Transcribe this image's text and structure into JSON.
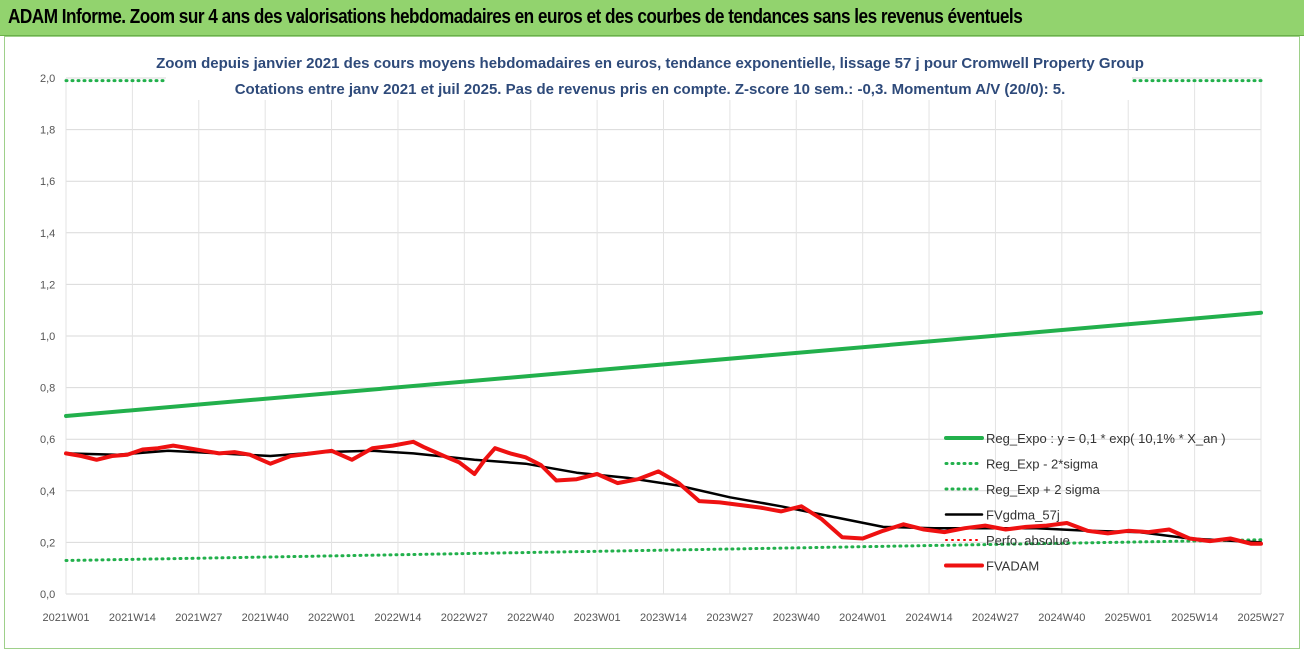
{
  "banner": {
    "title": "ADAM Informe. Zoom sur 4 ans des valorisations hebdomadaires en euros et des courbes de tendances sans les revenus éventuels"
  },
  "colors": {
    "banner_bg": "#92d36e",
    "reg_expo": "#22b04c",
    "reg_band": "#22b04c",
    "fvgdma": "#000000",
    "perfo": "#ff0000",
    "fvadam": "#ee1111",
    "subtitle": "#2e4a7a"
  },
  "chart_data": {
    "type": "line",
    "title_lines": [
      "Zoom depuis janvier 2021 des cours moyens hebdomadaires en euros, tendance exponentielle, lissage 57 j pour Cromwell Property Group",
      "Cotations entre janv 2021 et juil 2025. Pas de revenus pris en compte. Z-score 10 sem.: -0,3. Momentum A/V (20/0): 5."
    ],
    "xlabel": "",
    "ylabel": "",
    "ylim": [
      0,
      2.0
    ],
    "y_ticks": [
      "0,0",
      "0,2",
      "0,4",
      "0,6",
      "0,8",
      "1,0",
      "1,2",
      "1,4",
      "1,6",
      "1,8",
      "2,0"
    ],
    "y_tick_values": [
      0,
      0.2,
      0.4,
      0.6,
      0.8,
      1.0,
      1.2,
      1.4,
      1.6,
      1.8,
      2.0
    ],
    "x_ticks": [
      "2021W01",
      "2021W14",
      "2021W27",
      "2021W40",
      "2022W01",
      "2022W14",
      "2022W27",
      "2022W40",
      "2023W01",
      "2023W14",
      "2023W27",
      "2023W40",
      "2024W01",
      "2024W14",
      "2024W27",
      "2024W40",
      "2025W01",
      "2025W14",
      "2025W27"
    ],
    "x_range_weeks": [
      0,
      234
    ],
    "grid": true,
    "legend_placement": "right",
    "series": [
      {
        "name": "Reg_Expo : y = 0,1 * exp( 10,1% *  X_an )",
        "style": "solid",
        "color": "#22b04c",
        "x": [
          0,
          234
        ],
        "y": [
          0.69,
          1.09
        ]
      },
      {
        "name": "Reg_Exp - 2*sigma",
        "style": "dotted",
        "color": "#22b04c",
        "x": [
          0,
          234
        ],
        "y": [
          0.13,
          0.21
        ]
      },
      {
        "name": "Reg_Exp + 2 sigma",
        "style": "dotted",
        "color": "#22b04c",
        "x": [
          0,
          234
        ],
        "y": [
          1.99,
          1.99
        ]
      },
      {
        "name": "FVgdma_57j",
        "style": "solid",
        "color": "#000000",
        "x": [
          0,
          10,
          20,
          30,
          40,
          50,
          60,
          68,
          80,
          90,
          100,
          110,
          120,
          130,
          140,
          150,
          160,
          170,
          180,
          190,
          200,
          210,
          220,
          234
        ],
        "y": [
          0.545,
          0.54,
          0.555,
          0.545,
          0.535,
          0.55,
          0.555,
          0.545,
          0.52,
          0.505,
          0.47,
          0.45,
          0.42,
          0.375,
          0.34,
          0.3,
          0.26,
          0.255,
          0.255,
          0.255,
          0.245,
          0.24,
          0.215,
          0.2
        ]
      },
      {
        "name": "Perfo. absolue",
        "style": "dotted",
        "color": "#ff0000",
        "x": [],
        "y": []
      },
      {
        "name": "FVADAM",
        "style": "solid",
        "color": "#ee1111",
        "x": [
          0,
          3,
          6,
          9,
          12,
          15,
          18,
          21,
          24,
          27,
          30,
          33,
          36,
          40,
          44,
          48,
          52,
          56,
          60,
          64,
          68,
          70,
          74,
          77,
          80,
          82,
          84,
          87,
          90,
          93,
          96,
          100,
          104,
          108,
          112,
          116,
          120,
          124,
          128,
          132,
          136,
          140,
          144,
          148,
          152,
          156,
          160,
          164,
          168,
          172,
          176,
          180,
          184,
          188,
          192,
          196,
          200,
          204,
          208,
          212,
          216,
          220,
          224,
          228,
          232,
          234
        ],
        "y": [
          0.545,
          0.535,
          0.52,
          0.535,
          0.54,
          0.56,
          0.565,
          0.575,
          0.565,
          0.555,
          0.545,
          0.55,
          0.54,
          0.505,
          0.535,
          0.545,
          0.555,
          0.52,
          0.565,
          0.575,
          0.59,
          0.57,
          0.535,
          0.51,
          0.465,
          0.52,
          0.565,
          0.545,
          0.53,
          0.5,
          0.44,
          0.445,
          0.465,
          0.43,
          0.445,
          0.475,
          0.43,
          0.36,
          0.355,
          0.345,
          0.335,
          0.32,
          0.34,
          0.29,
          0.22,
          0.215,
          0.245,
          0.27,
          0.25,
          0.24,
          0.255,
          0.265,
          0.25,
          0.26,
          0.265,
          0.275,
          0.245,
          0.235,
          0.245,
          0.24,
          0.25,
          0.215,
          0.205,
          0.215,
          0.195,
          0.195
        ]
      }
    ]
  }
}
